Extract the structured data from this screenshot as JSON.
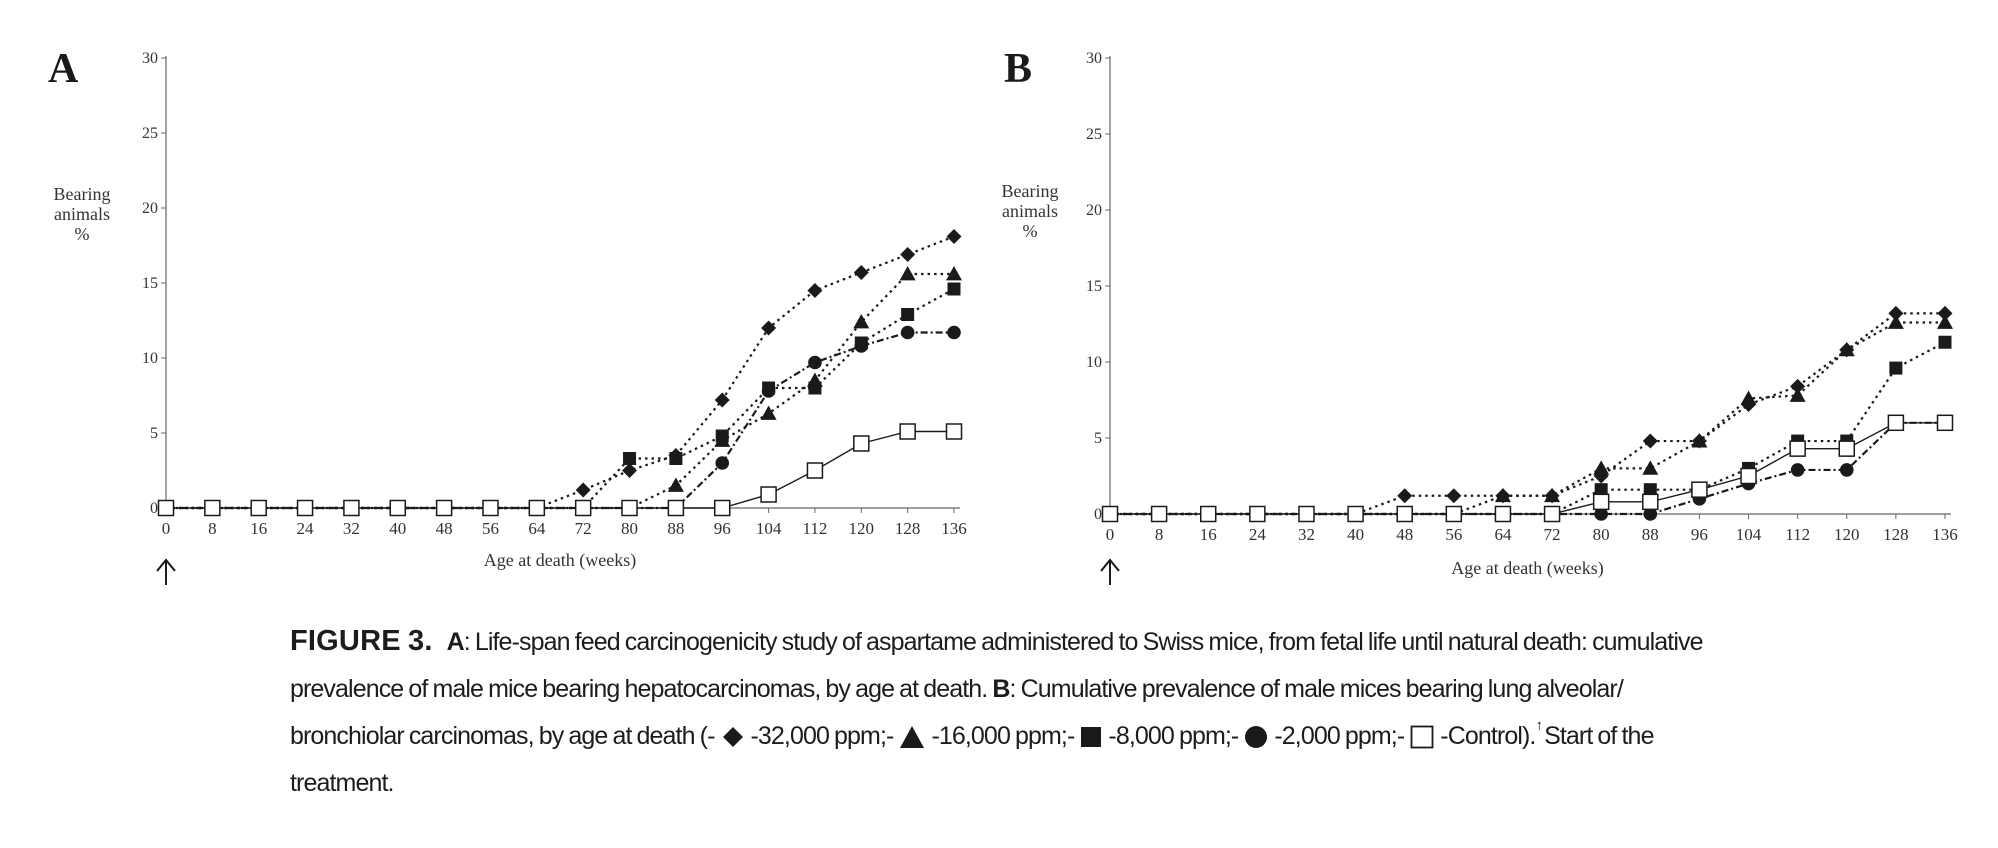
{
  "chart_data": [
    {
      "type": "line",
      "panel_label": "A",
      "ylabel": [
        "Bearing",
        "animals",
        "%"
      ],
      "xlabel": "Age at death (weeks)",
      "ylim": [
        0,
        30
      ],
      "yticks": [
        0,
        5,
        10,
        15,
        20,
        25,
        30
      ],
      "x": [
        0,
        8,
        16,
        24,
        32,
        40,
        48,
        56,
        64,
        72,
        80,
        88,
        96,
        104,
        112,
        120,
        128,
        136
      ],
      "treatment_start_x": 0,
      "series": [
        {
          "marker": "diamond",
          "line": "dotted",
          "values": [
            0,
            0,
            0,
            0,
            0,
            0,
            0,
            0,
            0,
            1.2,
            2.5,
            3.5,
            7.2,
            12.0,
            14.5,
            15.7,
            16.9,
            18.1
          ]
        },
        {
          "marker": "triangle",
          "line": "dotted",
          "values": [
            0,
            0,
            0,
            0,
            0,
            0,
            0,
            0,
            0,
            0,
            0,
            1.5,
            4.5,
            6.3,
            8.5,
            12.4,
            15.6,
            15.6
          ]
        },
        {
          "marker": "square",
          "line": "dotted",
          "values": [
            0,
            0,
            0,
            0,
            0,
            0,
            0,
            0,
            0,
            0,
            3.3,
            3.3,
            4.8,
            8.0,
            8.0,
            11.0,
            12.9,
            14.6
          ]
        },
        {
          "marker": "circle",
          "line": "dashdot",
          "values": [
            0,
            0,
            0,
            0,
            0,
            0,
            0,
            0,
            0,
            0,
            0,
            0,
            3.0,
            7.8,
            9.7,
            10.8,
            11.7,
            11.7
          ]
        },
        {
          "marker": "open-square",
          "line": "solid",
          "values": [
            0,
            0,
            0,
            0,
            0,
            0,
            0,
            0,
            0,
            0,
            0,
            0,
            0,
            0.9,
            2.5,
            4.3,
            5.1,
            5.1
          ]
        }
      ]
    },
    {
      "type": "line",
      "panel_label": "B",
      "ylabel": [
        "Bearing",
        "animals",
        "%"
      ],
      "xlabel": "Age at death (weeks)",
      "ylim": [
        0,
        30
      ],
      "yticks": [
        0,
        5,
        10,
        15,
        20,
        25,
        30
      ],
      "x": [
        0,
        8,
        16,
        24,
        32,
        40,
        48,
        56,
        64,
        72,
        80,
        88,
        96,
        104,
        112,
        120,
        128,
        136
      ],
      "treatment_start_x": 0,
      "series": [
        {
          "marker": "diamond",
          "line": "dotted",
          "values": [
            0,
            0,
            0,
            0,
            0,
            0,
            1.2,
            1.2,
            1.2,
            1.2,
            2.5,
            4.8,
            4.8,
            7.2,
            8.4,
            10.8,
            13.2,
            13.2
          ]
        },
        {
          "marker": "triangle",
          "line": "dotted",
          "values": [
            0,
            0,
            0,
            0,
            0,
            0,
            0,
            0,
            1.2,
            1.2,
            3.0,
            3.0,
            4.8,
            7.6,
            7.8,
            10.8,
            12.6,
            12.6
          ]
        },
        {
          "marker": "square",
          "line": "dotted",
          "values": [
            0,
            0,
            0,
            0,
            0,
            0,
            0,
            0,
            0,
            0,
            1.6,
            1.6,
            1.6,
            3.0,
            4.8,
            4.8,
            9.6,
            11.3
          ]
        },
        {
          "marker": "circle",
          "line": "dashdot",
          "values": [
            0,
            0,
            0,
            0,
            0,
            0,
            0,
            0,
            0,
            0,
            0,
            0,
            1.0,
            2.0,
            2.9,
            2.9,
            6.0,
            6.0
          ]
        },
        {
          "marker": "open-square",
          "line": "solid",
          "values": [
            0,
            0,
            0,
            0,
            0,
            0,
            0,
            0,
            0,
            0,
            0.8,
            0.8,
            1.6,
            2.5,
            4.3,
            4.3,
            6.0,
            6.0
          ]
        }
      ]
    }
  ],
  "caption": {
    "figure_label": "FIGURE 3.",
    "part_a_label": "A",
    "part_a_text": ": Life-span feed carcinogenicity study of aspartame administered to Swiss mice, from fetal life until natural death: cumulative prevalence of male mice bearing hepatocarcinomas, by age at death.",
    "part_b_label": "B",
    "part_b_text": ": Cumulative prevalence of male mices bearing lung alveolar/ bronchiolar carcinomas, by age at death (-",
    "legend_32000": "-32,000 ppm;-",
    "legend_16000": "-16,000 ppm;-",
    "legend_8000": "-8,000 ppm;-",
    "legend_2000": "-2,000 ppm;-",
    "legend_control": "-Control).",
    "footnote_mark": "↑",
    "footnote_text": "Start of the treatment."
  },
  "colors": {
    "ink": "#1a1a1a",
    "axis": "#666666"
  }
}
